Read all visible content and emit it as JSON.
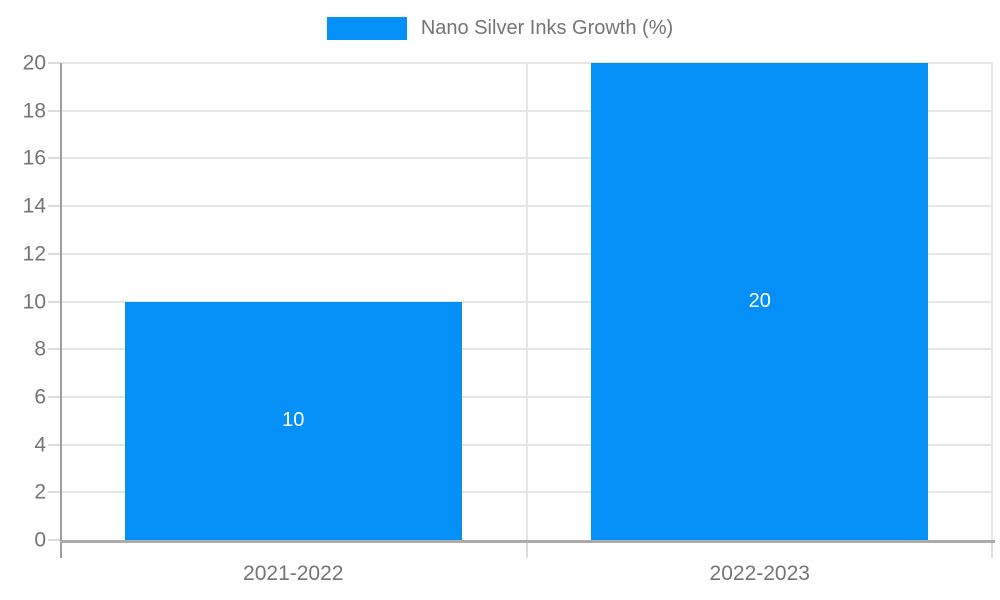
{
  "chart_data": {
    "type": "bar",
    "legend": "Nano Silver Inks Growth (%)",
    "categories": [
      "2021-2022",
      "2022-2023"
    ],
    "values": [
      10,
      20
    ],
    "ylim": [
      0,
      20
    ],
    "yticks": [
      0,
      2,
      4,
      6,
      8,
      10,
      12,
      14,
      16,
      18,
      20
    ],
    "grid": true,
    "legend_position": "top-center",
    "value_labels_inside_bars": true,
    "colors": {
      "bar": "#0590f8",
      "bar_label": "#ffffff",
      "tick_label": "#757575",
      "axis_line": "#9e9e9e",
      "x_axis_line": "#ababab",
      "gridline": "#e6e6e6",
      "minor_tick": "#dcdcdc",
      "background": "#ffffff"
    }
  }
}
